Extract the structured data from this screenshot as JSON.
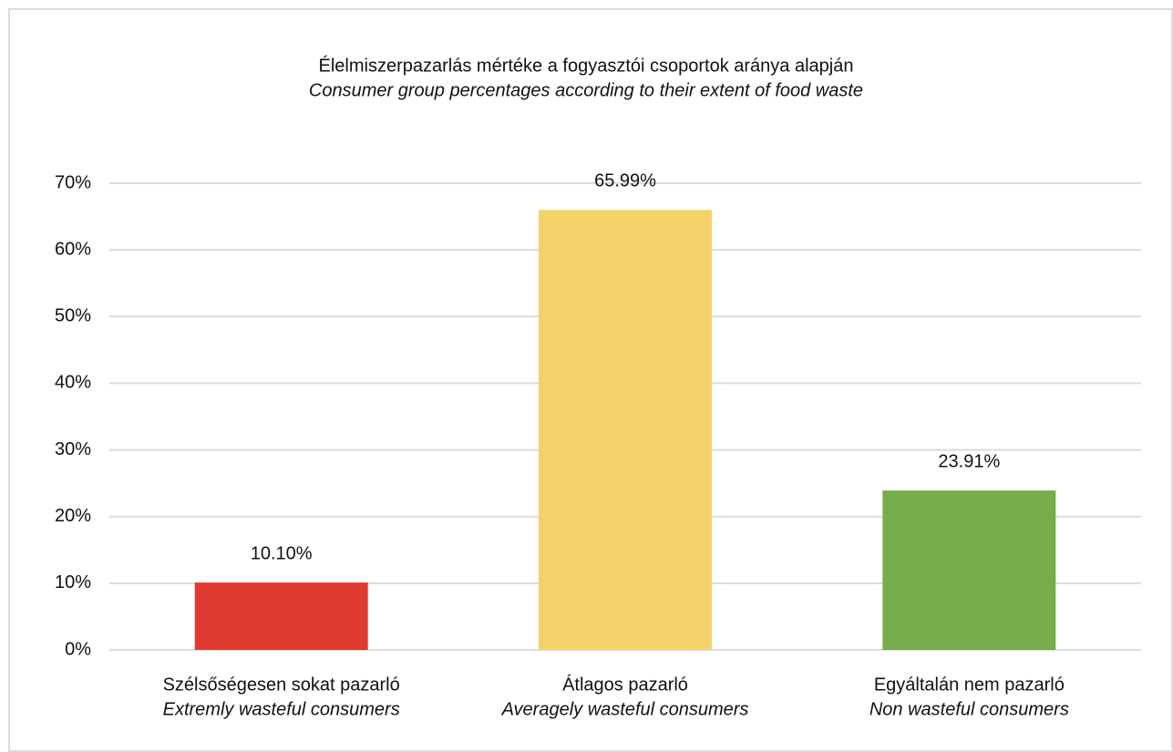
{
  "chart_data": {
    "type": "bar",
    "title": "Élelmiszerpazarlás mértéke a fogyasztói csoportok aránya alapján",
    "subtitle": "Consumer group percentages according to their extent of food waste",
    "categories": [
      "Szélsőségesen sokat pazarló",
      "Átlagos pazarló",
      "Egyáltalán nem pazarló"
    ],
    "category_translations": [
      "Extremly wasteful consumers",
      "Averagely wasteful consumers",
      "Non wasteful consumers"
    ],
    "values": [
      10.1,
      65.99,
      23.91
    ],
    "value_labels": [
      "10.10%",
      "65.99%",
      "23.91%"
    ],
    "colors": [
      "#e03a30",
      "#f3d26a",
      "#76ad4a"
    ],
    "ylim": [
      0,
      70
    ],
    "yticks": [
      {
        "value": 0,
        "label": "0%"
      },
      {
        "value": 10,
        "label": "10%"
      },
      {
        "value": 20,
        "label": "20%"
      },
      {
        "value": 30,
        "label": "30%"
      },
      {
        "value": 40,
        "label": "40%"
      },
      {
        "value": 50,
        "label": "50%"
      },
      {
        "value": 60,
        "label": "60%"
      },
      {
        "value": 70,
        "label": "70%"
      }
    ],
    "grid": true
  }
}
